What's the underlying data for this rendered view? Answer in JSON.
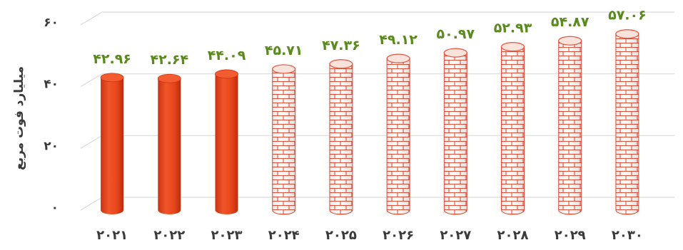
{
  "chart_data": {
    "type": "bar",
    "ylabel": "میلیارد فوت مربع",
    "categories": [
      "۲۰۲۱",
      "۲۰۲۲",
      "۲۰۲۳",
      "۲۰۲۴",
      "۲۰۲۵",
      "۲۰۲۶",
      "۲۰۲۷",
      "۲۰۲۸",
      "۲۰۲۹",
      "۲۰۳۰"
    ],
    "values": [
      42.96,
      42.64,
      44.09,
      45.71,
      47.36,
      49.12,
      50.97,
      52.93,
      54.87,
      57.06
    ],
    "value_labels": [
      "۴۲.۹۶",
      "۴۲.۶۴",
      "۴۴.۰۹",
      "۴۵.۷۱",
      "۴۷.۳۶",
      "۴۹.۱۲",
      "۵۰.۹۷",
      "۵۲.۹۳",
      "۵۴.۸۷",
      "۵۷.۰۶"
    ],
    "ylim": [
      0,
      60
    ],
    "yticks": [
      0,
      20,
      40,
      60
    ],
    "ytick_labels": [
      "۰",
      "۲۰",
      "۴۰",
      "۶۰"
    ],
    "grid": true,
    "bar_style": [
      "solid",
      "solid",
      "solid",
      "brick",
      "brick",
      "brick",
      "brick",
      "brick",
      "brick",
      "brick"
    ],
    "colors": {
      "solid_bar": "#e8461a",
      "brick_line": "#e4533a",
      "value_label": "#5a8a1e",
      "axis_text": "#3a3a3a",
      "grid": "#d9d9d9"
    }
  }
}
